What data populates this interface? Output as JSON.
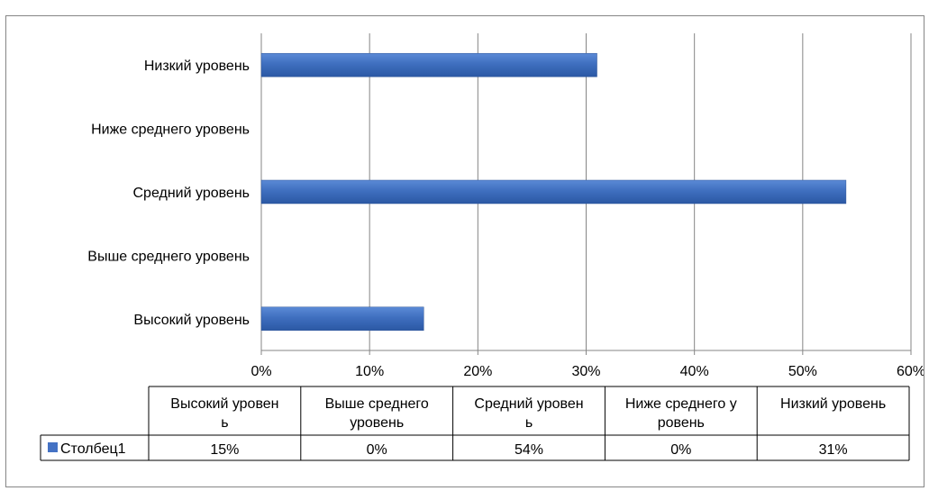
{
  "chart_data": {
    "type": "bar",
    "orientation": "horizontal",
    "title": "",
    "xlabel": "",
    "ylabel": "",
    "xlim": [
      0,
      60
    ],
    "x_ticks": [
      "0%",
      "10%",
      "20%",
      "30%",
      "40%",
      "50%",
      "60%"
    ],
    "grid": true,
    "categories": [
      "Высокий уровень",
      "Выше среднего уровень",
      "Средний уровень",
      "Ниже среднего уровень",
      "Низкий уровень"
    ],
    "series": [
      {
        "name": "Столбец1",
        "values": [
          15,
          0,
          54,
          0,
          31
        ],
        "color": "#4472C4"
      }
    ],
    "data_table": {
      "headers": [
        [
          "Высокий уровен",
          "ь"
        ],
        [
          "Выше среднего",
          "уровень"
        ],
        [
          "Средний уровен",
          "ь"
        ],
        [
          "Ниже среднего у",
          "ровень"
        ],
        [
          "Низкий уровень"
        ]
      ],
      "values": [
        "15%",
        "0%",
        "54%",
        "0%",
        "31%"
      ]
    }
  }
}
